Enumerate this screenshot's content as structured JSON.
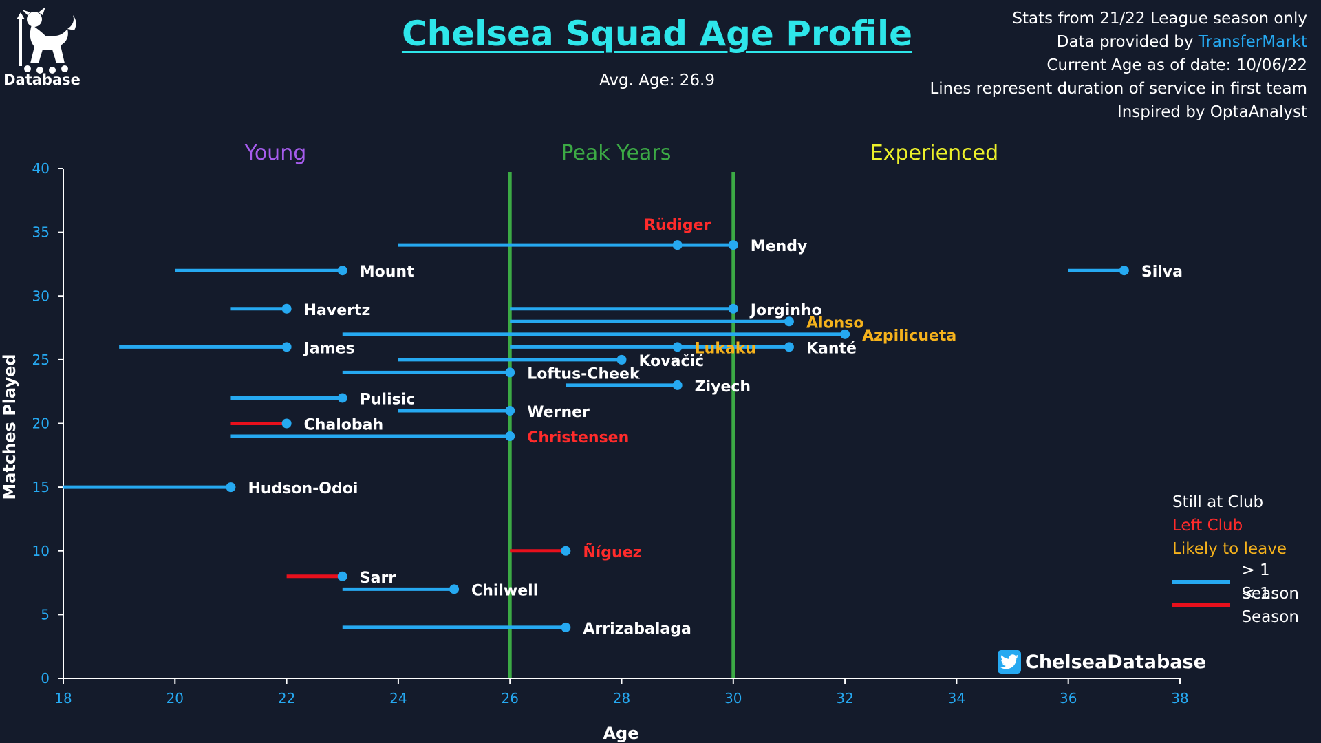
{
  "brand": {
    "logo_text": "Database",
    "logo_icon": "lion-crest-icon"
  },
  "header": {
    "title": "Chelsea Squad Age Profile",
    "subtitle": "Avg. Age: 26.9"
  },
  "notes": {
    "line1": "Stats from 21/22 League season only",
    "line2_prefix": "Data provided by ",
    "line2_link": "TransferMarkt",
    "line3": "Current Age as of date: 10/06/22",
    "line4": "Lines represent duration of service in first team",
    "line5": "Inspired by OptaAnalyst"
  },
  "legend": {
    "still_label": "Still at Club",
    "left_label": "Left Club",
    "likely_label": "Likely to leave",
    "long_label": "> 1 Season",
    "short_label": "< 1 Season"
  },
  "credit": {
    "handle": "ChelseaDatabase",
    "icon": "twitter-icon"
  },
  "colors": {
    "background": "#141b2b",
    "line_long": "#26a9f1",
    "line_short": "#e8101c",
    "still": "#ffffff",
    "left": "#ff2b2b",
    "likely": "#f5b21c",
    "zone_line": "#3caa45",
    "axis_text": "#26a9f1",
    "title": "#2ee6ea"
  },
  "chart_data": {
    "type": "scatter",
    "xlabel": "Age",
    "ylabel": "Matches Played",
    "xlim": [
      18,
      38
    ],
    "ylim": [
      0,
      40
    ],
    "xticks": [
      18,
      20,
      22,
      24,
      26,
      28,
      30,
      32,
      34,
      36,
      38
    ],
    "yticks": [
      0,
      5,
      10,
      15,
      20,
      25,
      30,
      35,
      40
    ],
    "grid": false,
    "legend_position": "right",
    "zones": [
      {
        "label": "Young",
        "color": "#a65ced",
        "label_x": 21.8
      },
      {
        "label": "Peak Years",
        "color": "#3caa45",
        "label_x": 27.9
      },
      {
        "label": "Experienced",
        "color": "#ecf02a",
        "label_x": 33.6
      }
    ],
    "zone_boundaries": [
      26,
      30
    ],
    "players": [
      {
        "name": "Mendy",
        "age": 30,
        "start_age": 24,
        "matches": 34,
        "status": "still",
        "tenure": "long"
      },
      {
        "name": "Rüdiger",
        "age": 29,
        "start_age": 29,
        "matches": 34,
        "status": "left",
        "tenure": "long"
      },
      {
        "name": "Mount",
        "age": 23,
        "start_age": 20,
        "matches": 32,
        "status": "still",
        "tenure": "long"
      },
      {
        "name": "Silva",
        "age": 37,
        "start_age": 36,
        "matches": 32,
        "status": "still",
        "tenure": "long"
      },
      {
        "name": "Havertz",
        "age": 22,
        "start_age": 21,
        "matches": 29,
        "status": "still",
        "tenure": "long"
      },
      {
        "name": "Jorginho",
        "age": 30,
        "start_age": 26,
        "matches": 29,
        "status": "still",
        "tenure": "long"
      },
      {
        "name": "Alonso",
        "age": 31,
        "start_age": 26,
        "matches": 28,
        "status": "likely",
        "tenure": "long"
      },
      {
        "name": "Azpilicueta",
        "age": 32,
        "start_age": 23,
        "matches": 27,
        "status": "likely",
        "tenure": "long"
      },
      {
        "name": "James",
        "age": 22,
        "start_age": 19,
        "matches": 26,
        "status": "still",
        "tenure": "long"
      },
      {
        "name": "Kanté",
        "age": 31,
        "start_age": 26,
        "matches": 26,
        "status": "still",
        "tenure": "long"
      },
      {
        "name": "Lukaku",
        "age": 29,
        "start_age": 29,
        "matches": 26,
        "status": "likely",
        "tenure": "long"
      },
      {
        "name": "Kovačić",
        "age": 28,
        "start_age": 24,
        "matches": 25,
        "status": "still",
        "tenure": "long"
      },
      {
        "name": "Loftus-Cheek",
        "age": 26,
        "start_age": 23,
        "matches": 24,
        "status": "still",
        "tenure": "long"
      },
      {
        "name": "Ziyech",
        "age": 29,
        "start_age": 27,
        "matches": 23,
        "status": "still",
        "tenure": "long"
      },
      {
        "name": "Pulisic",
        "age": 23,
        "start_age": 21,
        "matches": 22,
        "status": "still",
        "tenure": "long"
      },
      {
        "name": "Werner",
        "age": 26,
        "start_age": 24,
        "matches": 21,
        "status": "still",
        "tenure": "long"
      },
      {
        "name": "Chalobah",
        "age": 22,
        "start_age": 21,
        "matches": 20,
        "status": "still",
        "tenure": "short"
      },
      {
        "name": "Christensen",
        "age": 26,
        "start_age": 21,
        "matches": 19,
        "status": "left",
        "tenure": "long"
      },
      {
        "name": "Hudson-Odoi",
        "age": 21,
        "start_age": 18,
        "matches": 15,
        "status": "still",
        "tenure": "long"
      },
      {
        "name": "Ñíguez",
        "age": 27,
        "start_age": 26,
        "matches": 10,
        "status": "left",
        "tenure": "short"
      },
      {
        "name": "Sarr",
        "age": 23,
        "start_age": 22,
        "matches": 8,
        "status": "still",
        "tenure": "short"
      },
      {
        "name": "Chilwell",
        "age": 25,
        "start_age": 23,
        "matches": 7,
        "status": "still",
        "tenure": "long"
      },
      {
        "name": "Arrizabalaga",
        "age": 27,
        "start_age": 23,
        "matches": 4,
        "status": "still",
        "tenure": "long"
      }
    ]
  }
}
